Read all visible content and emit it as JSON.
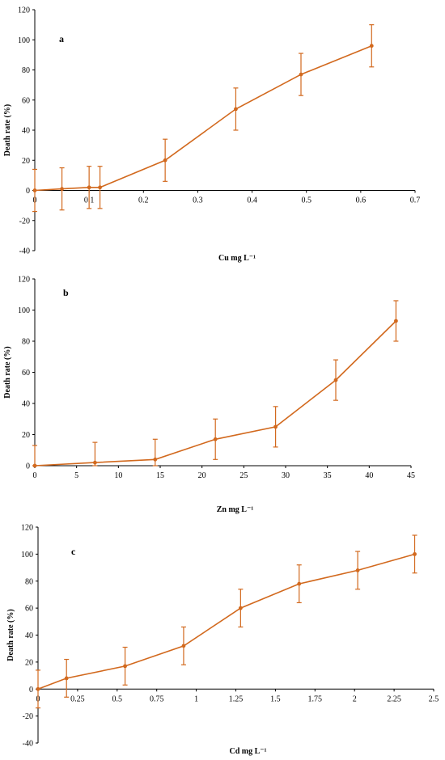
{
  "colors": {
    "series": "#D2691E",
    "axis": "#000000"
  },
  "chart_data": [
    {
      "type": "line",
      "panel_label": "a",
      "xlabel": "Cu mg L⁻¹",
      "ylabel": "Death rate (%)",
      "xlim": [
        0,
        0.7
      ],
      "ylim": [
        -40,
        120
      ],
      "xticks": [
        0,
        0.1,
        0.2,
        0.3,
        0.4,
        0.5,
        0.6,
        0.7
      ],
      "yticks": [
        -40,
        -20,
        0,
        20,
        40,
        60,
        80,
        100,
        120
      ],
      "xtick_labels": [
        "0",
        "0.1",
        "0.2",
        "0.3",
        "0.4",
        "0.5",
        "0.6",
        "0.7"
      ],
      "ytick_labels": [
        "-40",
        "-20",
        "0",
        "20",
        "40",
        "60",
        "80",
        "100",
        "120"
      ],
      "grid": false,
      "series": [
        {
          "x": [
            0,
            0.05,
            0.1,
            0.12,
            0.24,
            0.37,
            0.49,
            0.62
          ],
          "y": [
            0,
            1,
            2,
            2,
            20,
            54,
            77,
            96
          ],
          "error": [
            14,
            14,
            14,
            14,
            14,
            14,
            14,
            14
          ]
        }
      ]
    },
    {
      "type": "line",
      "panel_label": "b",
      "xlabel": "Zn mg L⁻¹",
      "ylabel": "Death rate (%)",
      "xlim": [
        0,
        45
      ],
      "ylim": [
        0,
        120
      ],
      "xticks": [
        0,
        5,
        10,
        15,
        20,
        25,
        30,
        35,
        40,
        45
      ],
      "yticks": [
        0,
        20,
        40,
        60,
        80,
        100,
        120
      ],
      "xtick_labels": [
        "0",
        "5",
        "10",
        "15",
        "20",
        "25",
        "30",
        "35",
        "40",
        "45"
      ],
      "ytick_labels": [
        "0",
        "20",
        "40",
        "60",
        "80",
        "100",
        "120"
      ],
      "grid": false,
      "series": [
        {
          "x": [
            0,
            7.2,
            14.4,
            21.6,
            28.8,
            36,
            43.2
          ],
          "y": [
            0,
            2,
            4,
            17,
            25,
            55,
            93
          ],
          "error": [
            13,
            13,
            13,
            13,
            13,
            13,
            13
          ]
        }
      ]
    },
    {
      "type": "line",
      "panel_label": "c",
      "xlabel": "Cd mg L⁻¹",
      "ylabel": "Death rate (%)",
      "xlim": [
        0,
        2.5
      ],
      "ylim": [
        -40,
        120
      ],
      "xticks": [
        0,
        0.25,
        0.5,
        0.75,
        1,
        1.25,
        1.5,
        1.75,
        2,
        2.25,
        2.5
      ],
      "yticks": [
        -40,
        -20,
        0,
        20,
        40,
        60,
        80,
        100,
        120
      ],
      "xtick_labels": [
        "0",
        "0.25",
        "0.5",
        "0.75",
        "1",
        "1.25",
        "1.5",
        "1.75",
        "2",
        "2.25",
        "2.5"
      ],
      "ytick_labels": [
        "-40",
        "-20",
        "0",
        "20",
        "40",
        "60",
        "80",
        "100",
        "120"
      ],
      "grid": false,
      "series": [
        {
          "x": [
            0,
            0.18,
            0.55,
            0.92,
            1.28,
            1.65,
            2.02,
            2.38
          ],
          "y": [
            0,
            8,
            17,
            32,
            60,
            78,
            88,
            100
          ],
          "error": [
            14,
            14,
            14,
            14,
            14,
            14,
            14,
            14
          ]
        }
      ]
    }
  ]
}
